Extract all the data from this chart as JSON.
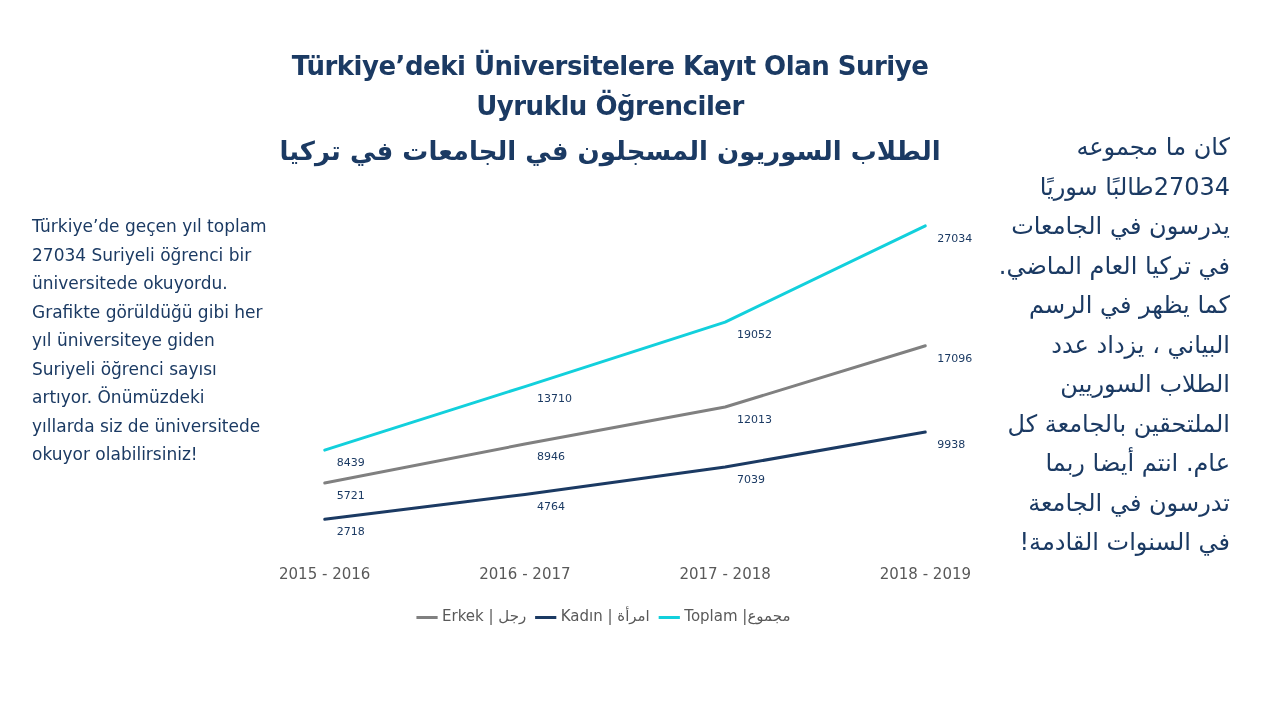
{
  "chart_data": {
    "type": "line",
    "title": "Türkiye’deki Üniversitelere Kayıt Olan Suriye Uyruklu Öğrenciler",
    "subtitle": "الطلاب السوريون المسجلون في الجامعات في تركيا",
    "categories": [
      "2015 - 2016",
      "2016 - 2017",
      "2017 - 2018",
      "2018 - 2019"
    ],
    "series": [
      {
        "name": "Erkek | رجل",
        "color": "#808080",
        "values": [
          5721,
          8946,
          12013,
          17096
        ]
      },
      {
        "name": "Kadın | امرأة",
        "color": "#1b3a63",
        "values": [
          2718,
          4764,
          7039,
          9938
        ]
      },
      {
        "name": "Toplam |مجموع",
        "color": "#12d0dc",
        "values": [
          8439,
          13710,
          19052,
          27034
        ]
      }
    ],
    "data_labels": true,
    "grid": false,
    "legend": "bottom",
    "marker": "none",
    "line_style": "solid",
    "annotations": [
      "Türkiye’de geçen yıl toplam 27034 Suriyeli öğrenci bir üniversitede okuyordu. Grafikte görüldüğü gibi her yıl üniversiteye giden Suriyeli öğrenci sayısı artıyor. Önümüzdeki yıllarda siz de üniversitede okuyor olabilirsiniz!",
      "كان ما مجموعه 27034طالبًا سوريًا يدرسون في الجامعات في تركيا العام الماضي. كما يظهر في الرسم البياني ، يزداد عدد الطلاب السوريين الملتحقين بالجامعة كل عام. انتم أيضا ربما تدرسون في الجامعة في السنوات القادمة!"
    ]
  }
}
